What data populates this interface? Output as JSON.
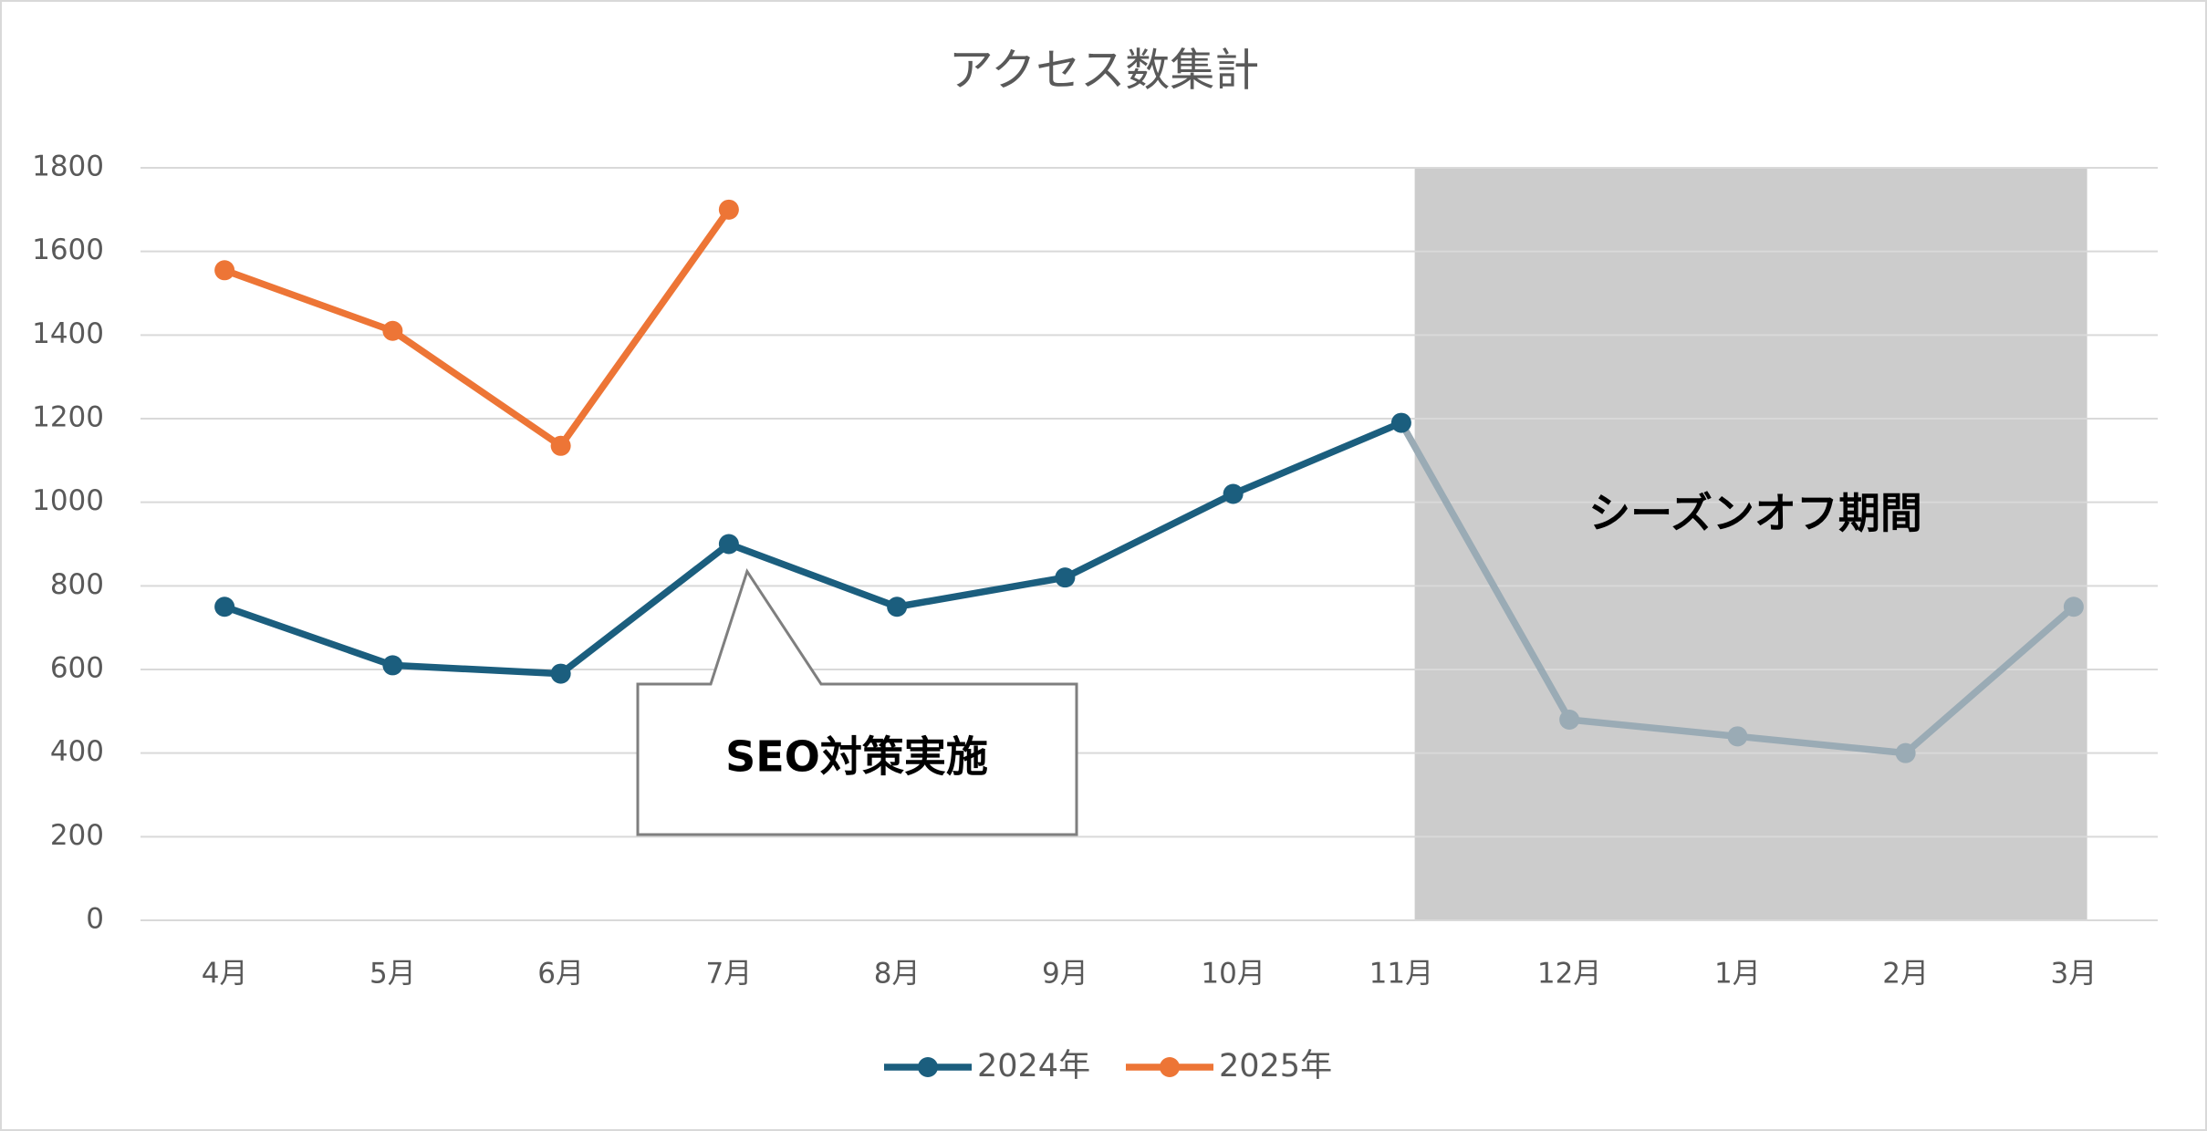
{
  "chart_data": {
    "type": "line",
    "title": "アクセス数集計",
    "categories": [
      "4月",
      "5月",
      "6月",
      "7月",
      "8月",
      "9月",
      "10月",
      "11月",
      "12月",
      "1月",
      "2月",
      "3月"
    ],
    "series": [
      {
        "name": "2024年",
        "color": "#1b5e7e",
        "values": [
          750,
          610,
          590,
          900,
          750,
          820,
          1020,
          1190,
          480,
          440,
          400,
          750
        ]
      },
      {
        "name": "2025年",
        "color": "#ed7536",
        "values": [
          1555,
          1410,
          1135,
          1700,
          null,
          null,
          null,
          null,
          null,
          null,
          null,
          null
        ]
      }
    ],
    "ylim": [
      0,
      1800
    ],
    "yticks": [
      0,
      200,
      400,
      600,
      800,
      1000,
      1200,
      1400,
      1600,
      1800
    ],
    "grid": true,
    "offseason": {
      "label": "シーズンオフ期間",
      "start": 8,
      "end": 11,
      "color": "#cccccc",
      "line_color": "#9aabb5"
    },
    "annotation": {
      "text": "SEO対策実施",
      "series": 0,
      "index": 3
    },
    "legend": "bottom"
  }
}
